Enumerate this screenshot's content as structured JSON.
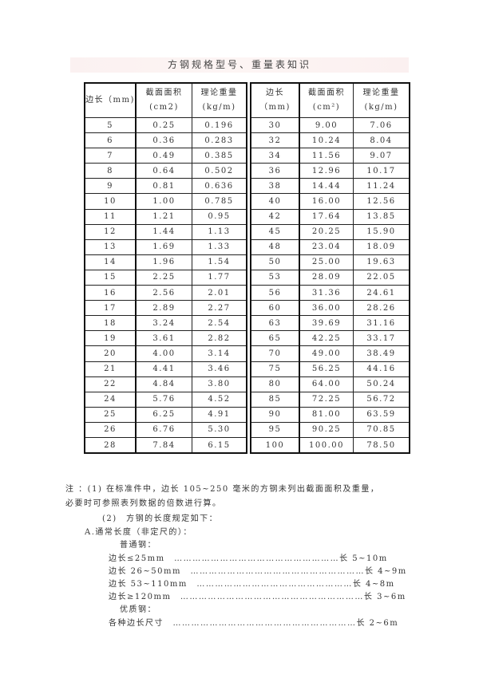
{
  "title": "方钢规格型号、重量表知识",
  "headers": [
    "边长（mm)",
    "截面面积\n(cm2)",
    "理论重量\n(kg/m)",
    "边长（mm)",
    "截面面积\n(cm²)",
    "理论重量\n(kg/m)"
  ],
  "left_rows": [
    [
      "5",
      "0.25",
      "0.196"
    ],
    [
      "6",
      "0.36",
      "0.283"
    ],
    [
      "7",
      "0.49",
      "0.385"
    ],
    [
      "8",
      "0.64",
      "0.502"
    ],
    [
      "9",
      "0.81",
      "0.636"
    ],
    [
      "10",
      "1.00",
      "0.785"
    ],
    [
      "11",
      "1.21",
      "0.95"
    ],
    [
      "12",
      "1.44",
      "1.13"
    ],
    [
      "13",
      "1.69",
      "1.33"
    ],
    [
      "14",
      "1.96",
      "1.54"
    ],
    [
      "15",
      "2.25",
      "1.77"
    ],
    [
      "16",
      "2.56",
      "2.01"
    ],
    [
      "17",
      "2.89",
      "2.27"
    ],
    [
      "18",
      "3.24",
      "2.54"
    ],
    [
      "19",
      "3.61",
      "2.82"
    ],
    [
      "20",
      "4.00",
      "3.14"
    ],
    [
      "21",
      "4.41",
      "3.46"
    ],
    [
      "22",
      "4.84",
      "3.80"
    ],
    [
      "24",
      "5.76",
      "4.52"
    ],
    [
      "25",
      "6.25",
      "4.91"
    ],
    [
      "26",
      "6.76",
      "5.30"
    ],
    [
      "28",
      "7.84",
      "6.15"
    ]
  ],
  "right_rows": [
    [
      "30",
      "9.00",
      "7.06"
    ],
    [
      "32",
      "10.24",
      "8.04"
    ],
    [
      "34",
      "11.56",
      "9.07"
    ],
    [
      "36",
      "12.96",
      "10.17"
    ],
    [
      "38",
      "14.44",
      "11.24"
    ],
    [
      "40",
      "16.00",
      "12.56"
    ],
    [
      "42",
      "17.64",
      "13.85"
    ],
    [
      "45",
      "20.25",
      "15.90"
    ],
    [
      "48",
      "23.04",
      "18.09"
    ],
    [
      "50",
      "25.00",
      "19.63"
    ],
    [
      "53",
      "28.09",
      "22.05"
    ],
    [
      "56",
      "31.36",
      "24.61"
    ],
    [
      "60",
      "36.00",
      "28.26"
    ],
    [
      "63",
      "39.69",
      "31.16"
    ],
    [
      "65",
      "42.25",
      "33.17"
    ],
    [
      "70",
      "49.00",
      "38.49"
    ],
    [
      "75",
      "56.25",
      "44.16"
    ],
    [
      "80",
      "64.00",
      "50.24"
    ],
    [
      "85",
      "72.25",
      "56.72"
    ],
    [
      "90",
      "81.00",
      "63.59"
    ],
    [
      "95",
      "90.25",
      "70.85"
    ],
    [
      "100",
      "100.00",
      "78.50"
    ]
  ],
  "notes": [
    "注 ：(1) 在标准件中，边长 105~250 毫米的方钢未列出截面面积及重量，",
    "必要时可参照表列数据的倍数进行算。",
    "(2)　方钢的长度规定如下：",
    "A.通常长度（非定尺的）：",
    "普通钢：",
    "边长≤25mm　………………………………………………长 5~10m",
    "边长 26~50mm　…………………………………………………长 4~9m",
    "边长 53~110mm　……………………………………………长 4~8m",
    "边长≥120mm　……………………………………………………长 3~6m",
    "优质钢：",
    "各种边长尺寸　……………………………………………………长 2~6m"
  ]
}
